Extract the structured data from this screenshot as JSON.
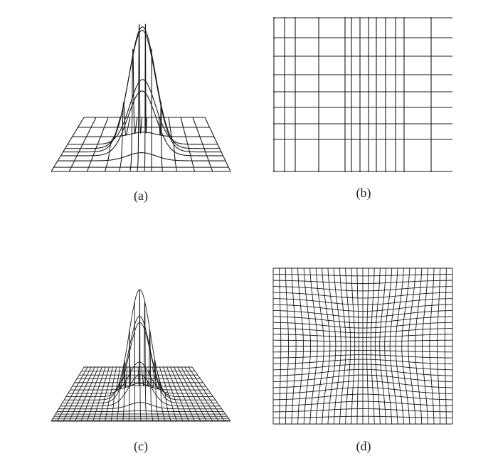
{
  "panels": [
    {
      "id": "a",
      "caption": "(a)",
      "content": "3d-gaussian-surface-coarse-mesh"
    },
    {
      "id": "b",
      "caption": "(b)",
      "content": "nonuniform-rectilinear-grid"
    },
    {
      "id": "c",
      "caption": "(c)",
      "content": "3d-gaussian-surface-fine-mesh"
    },
    {
      "id": "d",
      "caption": "(d)",
      "content": "adaptive-curvilinear-grid"
    }
  ],
  "colors": {
    "line": "#1a1a1a",
    "background": "#ffffff"
  }
}
